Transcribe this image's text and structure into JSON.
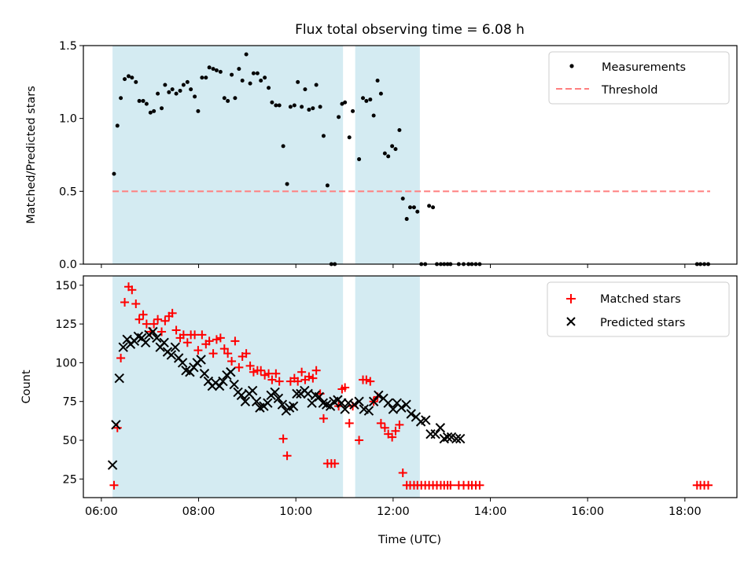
{
  "figure_title": "Flux total observing time = 6.08 h",
  "chart_data": [
    {
      "type": "scatter",
      "title": "Flux total observing time = 6.08 h",
      "xlabel": "",
      "ylabel": "Matched/Predicted stars",
      "x_unit": "hours UTC",
      "xlim": [
        5.63,
        19.07
      ],
      "ylim": [
        0,
        1.5
      ],
      "yticks": [
        0.0,
        0.5,
        1.0,
        1.5
      ],
      "ytick_labels": [
        "0.0",
        "0.5",
        "1.0",
        "1.5"
      ],
      "shaded_intervals": [
        [
          6.23,
          10.97
        ],
        [
          11.22,
          12.55
        ]
      ],
      "shade_color": "#add8e6",
      "legend_position": "upper right",
      "series": [
        {
          "name": "Measurements",
          "marker": "dot",
          "color": "#000000",
          "x": [
            6.26,
            6.33,
            6.4,
            6.48,
            6.56,
            6.63,
            6.71,
            6.78,
            6.86,
            6.93,
            7.01,
            7.08,
            7.16,
            7.24,
            7.31,
            7.39,
            7.46,
            7.54,
            7.62,
            7.69,
            7.77,
            7.84,
            7.92,
            7.99,
            8.07,
            8.15,
            8.22,
            8.3,
            8.37,
            8.45,
            8.53,
            8.6,
            8.68,
            8.75,
            8.83,
            8.9,
            8.98,
            9.06,
            9.13,
            9.21,
            9.28,
            9.36,
            9.44,
            9.51,
            9.59,
            9.66,
            9.74,
            9.82,
            9.89,
            9.97,
            10.04,
            10.12,
            10.19,
            10.27,
            10.35,
            10.42,
            10.5,
            10.57,
            10.65,
            10.73,
            10.8,
            10.88,
            10.95,
            11.01,
            11.1,
            11.17,
            11.3,
            11.38,
            11.45,
            11.53,
            11.6,
            11.68,
            11.75,
            11.83,
            11.9,
            11.98,
            12.05,
            12.13,
            12.2,
            12.28,
            12.35,
            12.43,
            12.5,
            12.58,
            12.66,
            12.74,
            12.82,
            12.9,
            12.98,
            13.05,
            13.12,
            13.18,
            13.35,
            13.45,
            13.55,
            13.62,
            13.7,
            13.78,
            18.25,
            18.32,
            18.4,
            18.48
          ],
          "y": [
            0.62,
            0.95,
            1.14,
            1.27,
            1.29,
            1.28,
            1.25,
            1.12,
            1.12,
            1.1,
            1.04,
            1.05,
            1.17,
            1.07,
            1.23,
            1.18,
            1.2,
            1.17,
            1.19,
            1.23,
            1.25,
            1.2,
            1.15,
            1.05,
            1.28,
            1.28,
            1.35,
            1.34,
            1.33,
            1.32,
            1.14,
            1.12,
            1.3,
            1.14,
            1.34,
            1.26,
            1.44,
            1.24,
            1.31,
            1.31,
            1.26,
            1.28,
            1.21,
            1.11,
            1.09,
            1.09,
            0.81,
            0.55,
            1.08,
            1.09,
            1.25,
            1.08,
            1.2,
            1.06,
            1.07,
            1.23,
            1.08,
            0.88,
            0.54,
            0.0,
            0.0,
            1.01,
            1.1,
            1.11,
            0.87,
            1.05,
            0.72,
            1.14,
            1.12,
            1.13,
            1.02,
            1.26,
            1.17,
            0.76,
            0.74,
            0.81,
            0.79,
            0.92,
            0.45,
            0.31,
            0.39,
            0.39,
            0.36,
            0.0,
            0.0,
            0.4,
            0.39,
            0.0,
            0.0,
            0.0,
            0.0,
            0.0,
            0.0,
            0.0,
            0.0,
            0.0,
            0.0,
            0.0,
            0.0,
            0.0,
            0.0,
            0.0
          ]
        },
        {
          "name": "Threshold",
          "marker": "dashed-line",
          "color": "#ff7f7f",
          "x": [
            6.23,
            18.52
          ],
          "y": [
            0.5,
            0.5
          ]
        }
      ]
    },
    {
      "type": "scatter",
      "title": "",
      "xlabel": "Time (UTC)",
      "ylabel": "Count",
      "x_unit": "hours UTC",
      "xlim": [
        5.63,
        19.07
      ],
      "ylim": [
        13,
        156
      ],
      "xticks": [
        6,
        8,
        10,
        12,
        14,
        16,
        18
      ],
      "xtick_labels": [
        "06:00",
        "08:00",
        "10:00",
        "12:00",
        "14:00",
        "16:00",
        "18:00"
      ],
      "yticks": [
        25,
        50,
        75,
        100,
        125,
        150
      ],
      "ytick_labels": [
        "25",
        "50",
        "75",
        "100",
        "125",
        "150"
      ],
      "shaded_intervals": [
        [
          6.23,
          10.97
        ],
        [
          11.22,
          12.55
        ]
      ],
      "shade_color": "#add8e6",
      "legend_position": "upper right",
      "series": [
        {
          "name": "Matched stars",
          "marker": "plus",
          "color": "#ff0000",
          "x": [
            6.26,
            6.33,
            6.4,
            6.48,
            6.56,
            6.63,
            6.71,
            6.78,
            6.86,
            6.93,
            7.01,
            7.08,
            7.16,
            7.24,
            7.31,
            7.39,
            7.46,
            7.54,
            7.62,
            7.69,
            7.77,
            7.84,
            7.92,
            7.99,
            8.07,
            8.15,
            8.22,
            8.3,
            8.37,
            8.45,
            8.53,
            8.6,
            8.68,
            8.75,
            8.83,
            8.9,
            8.98,
            9.06,
            9.13,
            9.21,
            9.28,
            9.36,
            9.44,
            9.51,
            9.59,
            9.66,
            9.74,
            9.82,
            9.89,
            9.97,
            10.04,
            10.12,
            10.19,
            10.27,
            10.35,
            10.42,
            10.5,
            10.57,
            10.65,
            10.73,
            10.8,
            10.88,
            10.95,
            11.01,
            11.1,
            11.17,
            11.3,
            11.38,
            11.45,
            11.53,
            11.6,
            11.68,
            11.75,
            11.83,
            11.9,
            11.98,
            12.05,
            12.13,
            12.2,
            12.28,
            12.35,
            12.43,
            12.5,
            12.58,
            12.66,
            12.74,
            12.82,
            12.9,
            12.98,
            13.05,
            13.12,
            13.18,
            13.35,
            13.45,
            13.55,
            13.62,
            13.7,
            13.78,
            18.25,
            18.32,
            18.4,
            18.48
          ],
          "y": [
            21,
            58,
            103,
            139,
            149,
            147,
            138,
            128,
            131,
            125,
            120,
            125,
            128,
            120,
            127,
            130,
            132,
            121,
            116,
            118,
            113,
            118,
            118,
            108,
            118,
            112,
            114,
            106,
            115,
            116,
            109,
            106,
            101,
            114,
            97,
            104,
            106,
            98,
            94,
            95,
            95,
            92,
            93,
            89,
            93,
            88,
            51,
            40,
            88,
            90,
            88,
            94,
            89,
            91,
            90,
            95,
            80,
            64,
            35,
            35,
            35,
            72,
            83,
            84,
            61,
            72,
            50,
            89,
            89,
            88,
            75,
            78,
            61,
            58,
            54,
            52,
            56,
            60,
            29,
            21,
            21,
            21,
            21,
            21,
            21,
            21,
            21,
            21,
            21,
            21,
            21,
            21,
            21,
            21,
            21,
            21,
            21,
            21,
            21,
            21,
            21,
            21
          ]
        },
        {
          "name": "Predicted stars",
          "marker": "x",
          "color": "#000000",
          "x": [
            6.23,
            6.3,
            6.37,
            6.45,
            6.53,
            6.6,
            6.68,
            6.76,
            6.83,
            6.91,
            6.98,
            7.06,
            7.14,
            7.21,
            7.29,
            7.36,
            7.44,
            7.52,
            7.59,
            7.67,
            7.74,
            7.82,
            7.9,
            7.97,
            8.05,
            8.12,
            8.2,
            8.28,
            8.35,
            8.43,
            8.5,
            8.58,
            8.66,
            8.73,
            8.81,
            8.88,
            8.96,
            9.04,
            9.11,
            9.19,
            9.26,
            9.34,
            9.42,
            9.49,
            9.57,
            9.64,
            9.72,
            9.8,
            9.87,
            9.95,
            10.02,
            10.1,
            10.18,
            10.25,
            10.33,
            10.4,
            10.48,
            10.56,
            10.63,
            10.71,
            10.78,
            10.86,
            10.94,
            11.01,
            11.08,
            11.2,
            11.3,
            11.4,
            11.5,
            11.6,
            11.7,
            11.8,
            11.9,
            12.0,
            12.08,
            12.17,
            12.27,
            12.37,
            12.47,
            12.57,
            12.67,
            12.77,
            12.87,
            12.97,
            13.05,
            13.12,
            13.2,
            13.3,
            13.38
          ],
          "y": [
            34,
            60,
            90,
            110,
            115,
            112,
            114,
            117,
            116,
            113,
            118,
            120,
            116,
            110,
            113,
            107,
            105,
            110,
            103,
            100,
            95,
            94,
            97,
            100,
            102,
            93,
            88,
            85,
            87,
            85,
            88,
            92,
            94,
            86,
            81,
            79,
            75,
            80,
            82,
            75,
            71,
            72,
            74,
            79,
            81,
            77,
            73,
            69,
            71,
            72,
            80,
            80,
            82,
            80,
            74,
            79,
            78,
            74,
            73,
            72,
            75,
            76,
            74,
            70,
            74,
            73,
            75,
            70,
            69,
            75,
            79,
            77,
            74,
            70,
            74,
            71,
            73,
            67,
            65,
            62,
            63,
            54,
            54,
            58,
            51,
            52,
            52,
            51,
            51
          ]
        }
      ]
    }
  ]
}
